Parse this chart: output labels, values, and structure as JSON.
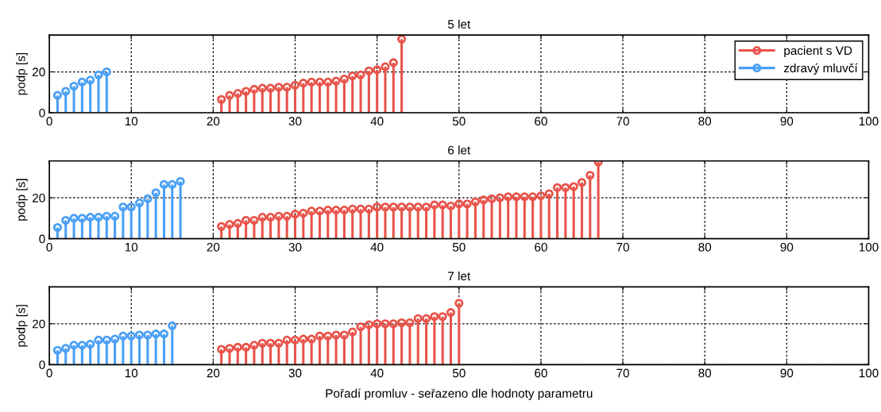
{
  "chart_data": [
    {
      "type": "lollipop",
      "title": "5 let",
      "ylabel": "podp [s]",
      "xlim": [
        0,
        100
      ],
      "xticks": [
        0,
        10,
        20,
        30,
        40,
        50,
        60,
        70,
        80,
        90,
        100
      ],
      "ylim": [
        0,
        38
      ],
      "yticks": [
        0,
        20
      ],
      "grid": true,
      "marker": "circle",
      "legend": "top right",
      "series": [
        {
          "name": "pacient s VD",
          "color": "#e8534a",
          "x": [
            21,
            22,
            23,
            24,
            25,
            26,
            27,
            28,
            29,
            30,
            31,
            32,
            33,
            34,
            35,
            36,
            37,
            38,
            39,
            40,
            41,
            42,
            43
          ],
          "values": [
            6.5,
            8.5,
            9.5,
            10.5,
            11.5,
            12,
            12,
            12.5,
            12.5,
            13.5,
            14.5,
            15,
            15,
            15,
            15.5,
            16.5,
            18,
            18.5,
            20.5,
            21,
            22.5,
            24.5,
            36
          ]
        },
        {
          "name": "zdravý mluvčí",
          "color": "#4a9ff5",
          "x": [
            1,
            2,
            3,
            4,
            5,
            6,
            7
          ],
          "values": [
            8.5,
            10.5,
            13,
            15,
            16,
            18.5,
            20
          ]
        }
      ]
    },
    {
      "type": "lollipop",
      "title": "6 let",
      "ylabel": "podp [s]",
      "xlim": [
        0,
        100
      ],
      "xticks": [
        0,
        10,
        20,
        30,
        40,
        50,
        60,
        70,
        80,
        90,
        100
      ],
      "ylim": [
        0,
        38
      ],
      "yticks": [
        0,
        20
      ],
      "grid": true,
      "marker": "circle",
      "series": [
        {
          "color": "#e8534a",
          "x": [
            21,
            22,
            23,
            24,
            25,
            26,
            27,
            28,
            29,
            30,
            31,
            32,
            33,
            34,
            35,
            36,
            37,
            38,
            39,
            40,
            41,
            42,
            43,
            44,
            45,
            46,
            47,
            48,
            49,
            50,
            51,
            52,
            53,
            54,
            55,
            56,
            57,
            58,
            59,
            60,
            61,
            62,
            63,
            64,
            65,
            66,
            67
          ],
          "values": [
            6,
            7,
            7.5,
            9,
            9,
            10.5,
            10.5,
            11,
            11,
            12,
            12.5,
            13.5,
            13.5,
            14,
            14,
            14,
            14.5,
            14.5,
            14.5,
            15.5,
            15.5,
            15.5,
            15.5,
            15.5,
            15.5,
            15.5,
            16.5,
            16.5,
            16,
            17,
            17,
            18,
            19,
            19.5,
            20,
            20.5,
            20.5,
            20.5,
            20.5,
            21,
            22,
            25,
            25,
            25.5,
            27.5,
            31,
            37.5
          ]
        },
        {
          "color": "#4a9ff5",
          "x": [
            1,
            2,
            3,
            4,
            5,
            6,
            7,
            8,
            9,
            10,
            11,
            12,
            13,
            14,
            15,
            16
          ],
          "values": [
            5.5,
            9,
            10,
            10,
            10.5,
            10.5,
            11,
            11,
            15.5,
            15.5,
            17.5,
            19.5,
            22.5,
            26.5,
            26.5,
            28
          ]
        }
      ]
    },
    {
      "type": "lollipop",
      "title": "7 let",
      "ylabel": "podp [s]",
      "xlabel": "Pořadí promluv - seřazeno dle hodnoty parametru",
      "xlim": [
        0,
        100
      ],
      "xticks": [
        0,
        10,
        20,
        30,
        40,
        50,
        60,
        70,
        80,
        90,
        100
      ],
      "ylim": [
        0,
        38
      ],
      "yticks": [
        0,
        20
      ],
      "grid": true,
      "marker": "circle",
      "series": [
        {
          "color": "#e8534a",
          "x": [
            21,
            22,
            23,
            24,
            25,
            26,
            27,
            28,
            29,
            30,
            31,
            32,
            33,
            34,
            35,
            36,
            37,
            38,
            39,
            40,
            41,
            42,
            43,
            44,
            45,
            46,
            47,
            48,
            49,
            50
          ],
          "values": [
            7.5,
            8,
            8.5,
            8.5,
            9.5,
            10.5,
            10.5,
            10.5,
            12,
            12,
            12.5,
            12.5,
            14,
            14,
            14.5,
            14.5,
            16,
            18.5,
            19.5,
            20,
            20,
            20,
            20.5,
            20.5,
            22.5,
            22.5,
            23.5,
            23.5,
            25.5,
            30
          ]
        },
        {
          "color": "#4a9ff5",
          "x": [
            1,
            2,
            3,
            4,
            5,
            6,
            7,
            8,
            9,
            10,
            11,
            12,
            13,
            14,
            15
          ],
          "values": [
            7,
            8,
            9.5,
            9.5,
            10,
            12,
            12,
            12.5,
            14,
            14,
            14.5,
            14.5,
            15,
            15,
            19
          ]
        }
      ]
    }
  ]
}
